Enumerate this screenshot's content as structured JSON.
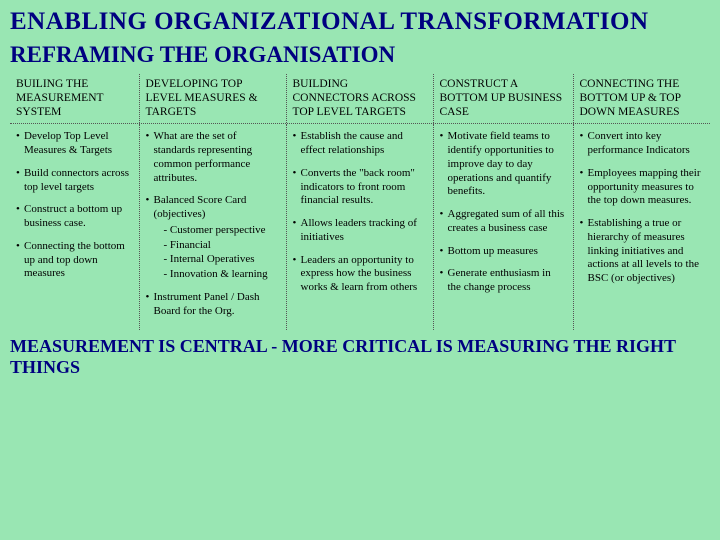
{
  "background_color": "#99e6b3",
  "heading_color": "#000080",
  "text_color": "#000000",
  "border_color": "#555555",
  "title": "ENABLING ORGANIZATIONAL TRANSFORMATION",
  "subtitle": "REFRAMING THE ORGANISATION",
  "headers": {
    "c1": "BUILING THE MEASUREMENT SYSTEM",
    "c2": "DEVELOPING TOP LEVEL MEASURES & TARGETS",
    "c3": "BUILDING CONNECTORS ACROSS TOP LEVEL TARGETS",
    "c4": "CONSTRUCT A BOTTOM UP BUSINESS CASE",
    "c5": "CONNECTING THE BOTTOM UP & TOP DOWN MEASURES"
  },
  "col1": {
    "b1": "Develop Top Level Measures & Targets",
    "b2": "Build connectors across top level targets",
    "b3": "Construct a bottom up business case.",
    "b4": "Connecting the bottom up and top down measures"
  },
  "col2": {
    "b1": "What are the set of standards representing common performance attributes.",
    "b2": "Balanced Score Card (objectives)",
    "s1": "- Customer perspective",
    "s2": "- Financial",
    "s3": "- Internal Operatives",
    "s4": "- Innovation & learning",
    "b3": "Instrument Panel / Dash Board for the Org."
  },
  "col3": {
    "b1": "Establish the cause and effect relationships",
    "b2": "Converts the \"back room\" indicators to front room financial results.",
    "b3": "Allows leaders tracking of initiatives",
    "b4": "Leaders an opportunity to express how the business works & learn from others"
  },
  "col4": {
    "b1": "Motivate field teams to identify opportunities to improve day to day operations and quantify benefits.",
    "b2": "Aggregated sum of all this creates a business case",
    "b3": "Bottom up measures",
    "b4": "Generate enthusiasm in the change process"
  },
  "col5": {
    "b1": "Convert into key performance Indicators",
    "b2": "Employees mapping their opportunity measures to the top down measures.",
    "b3": "Establishing a true or hierarchy of measures linking initiatives and actions at all levels to the BSC (or objectives)"
  },
  "footer": "MEASUREMENT IS CENTRAL - MORE CRITICAL IS MEASURING THE RIGHT THINGS"
}
